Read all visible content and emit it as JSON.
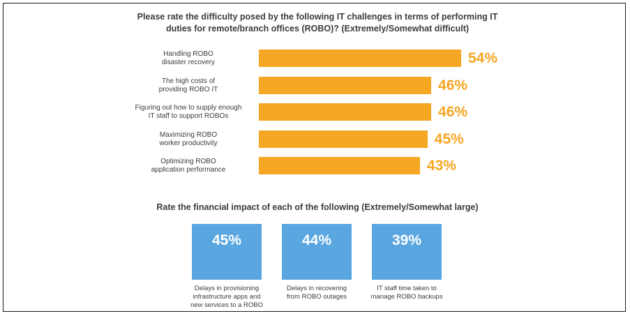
{
  "colors": {
    "bar": "#f5a623",
    "tile": "#5aa6e0",
    "text": "#3b3b3b"
  },
  "chart_data": [
    {
      "type": "bar",
      "orientation": "horizontal",
      "title": "Please rate the difficulty posed by the following IT challenges in terms of performing IT duties for remote/branch offices (ROBO)? (Extremely/Somewhat difficult)",
      "categories": [
        "Handling ROBO disaster recovery",
        "The high costs of providing ROBO IT",
        "Figuring out how to supply enough IT staff to support ROBOs",
        "Maximizing ROBO worker productivity",
        "Optimizing ROBO application performance"
      ],
      "category_lines": [
        [
          "Handling ROBO",
          "disaster recovery"
        ],
        [
          "The high costs of",
          "providing ROBO IT"
        ],
        [
          "Figuring out how to supply enough",
          "IT staff to support ROBOs"
        ],
        [
          "Maximizing ROBO",
          "worker productivity"
        ],
        [
          "Optimizing ROBO",
          "application performance"
        ]
      ],
      "values": [
        54,
        46,
        46,
        45,
        43
      ],
      "value_labels": [
        "54%",
        "46%",
        "46%",
        "45%",
        "43%"
      ],
      "unit": "%",
      "grid": false
    },
    {
      "type": "bar",
      "style": "tiles",
      "title": "Rate the financial impact of each of the following (Extremely/Somewhat large)",
      "categories": [
        "Delays in provisioning infrastructure apps and new services to a ROBO",
        "Delays in recovering from ROBO outages",
        "IT staff time taken to manage ROBO backups"
      ],
      "category_lines": [
        [
          "Delays in provisioning",
          "infrastructure apps and",
          "new services to a ROBO"
        ],
        [
          "Delays in recovering",
          "from ROBO outages"
        ],
        [
          "IT staff time taken to",
          "manage ROBO backups"
        ]
      ],
      "values": [
        45,
        44,
        39
      ],
      "value_labels": [
        "45%",
        "44%",
        "39%"
      ],
      "unit": "%"
    }
  ]
}
